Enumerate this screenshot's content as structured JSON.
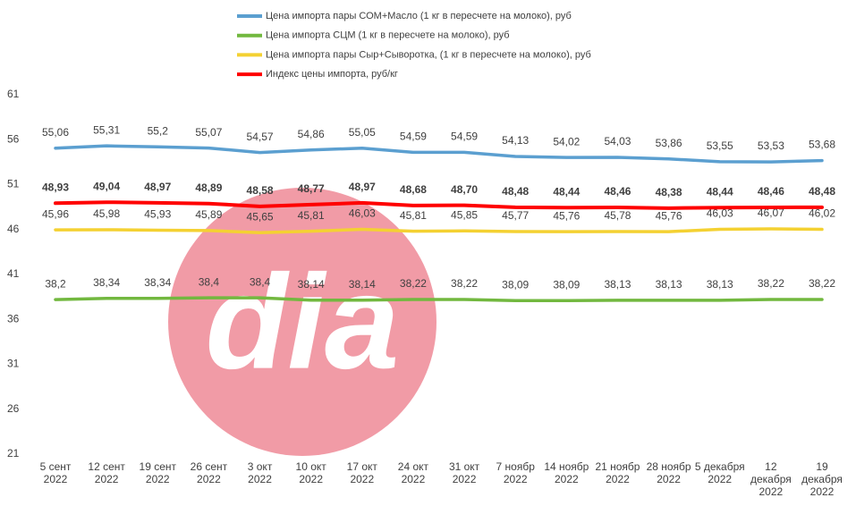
{
  "chart_data": {
    "type": "line",
    "watermark": "dia",
    "categories": [
      [
        "5 сент",
        "2022"
      ],
      [
        "12 сент",
        "2022"
      ],
      [
        "19 сент",
        "2022"
      ],
      [
        "26 сент",
        "2022"
      ],
      [
        "3 окт",
        "2022"
      ],
      [
        "10 окт",
        "2022"
      ],
      [
        "17 окт",
        "2022"
      ],
      [
        "24 окт",
        "2022"
      ],
      [
        "31 окт",
        "2022"
      ],
      [
        "7 ноябр",
        "2022"
      ],
      [
        "14 ноябр",
        "2022"
      ],
      [
        "21 ноябр",
        "2022"
      ],
      [
        "28 ноябр",
        "2022"
      ],
      [
        "5 декабря",
        "2022"
      ],
      [
        "12",
        "декабря",
        "2022"
      ],
      [
        "19",
        "декабря",
        "2022"
      ]
    ],
    "ylim": [
      21,
      61
    ],
    "yticks": [
      21,
      26,
      31,
      36,
      41,
      46,
      51,
      56,
      61
    ],
    "series": [
      {
        "name": "Цена импорта пары СОМ+Масло  (1 кг в пересчете на молоко), руб",
        "color": "#5b9fd0",
        "values": [
          55.06,
          55.31,
          55.2,
          55.07,
          54.57,
          54.86,
          55.05,
          54.59,
          54.59,
          54.13,
          54.02,
          54.03,
          53.86,
          53.55,
          53.53,
          53.68
        ],
        "value_labels": [
          "55,06",
          "55,31",
          "55,2",
          "55,07",
          "54,57",
          "54,86",
          "55,05",
          "54,59",
          "54,59",
          "54,13",
          "54,02",
          "54,03",
          "53,86",
          "53,55",
          "53,53",
          "53,68"
        ]
      },
      {
        "name": "Цена импорта СЦМ (1 кг в пересчете на молоко), руб",
        "color": "#72b83f",
        "values": [
          38.2,
          38.34,
          38.34,
          38.4,
          38.4,
          38.14,
          38.14,
          38.22,
          38.22,
          38.09,
          38.09,
          38.13,
          38.13,
          38.13,
          38.22,
          38.22
        ],
        "value_labels": [
          "38,2",
          "38,34",
          "38,34",
          "38,4",
          "38,4",
          "38,14",
          "38,14",
          "38,22",
          "38,22",
          "38,09",
          "38,09",
          "38,13",
          "38,13",
          "38,13",
          "38,22",
          "38,22"
        ]
      },
      {
        "name": "Цена импорта пары Сыр+Сыворотка, (1 кг в пересчете на молоко), руб",
        "color": "#f4d132",
        "values": [
          45.96,
          45.98,
          45.93,
          45.89,
          45.65,
          45.81,
          46.03,
          45.81,
          45.85,
          45.77,
          45.76,
          45.78,
          45.76,
          46.03,
          46.07,
          46.02
        ],
        "value_labels": [
          "45,96",
          "45,98",
          "45,93",
          "45,89",
          "45,65",
          "45,81",
          "46,03",
          "45,81",
          "45,85",
          "45,77",
          "45,76",
          "45,78",
          "45,76",
          "46,03",
          "46,07",
          "46,02"
        ]
      },
      {
        "name": "Индекс цены импорта, руб/кг",
        "color": "#ff0000",
        "values": [
          48.93,
          49.04,
          48.97,
          48.89,
          48.58,
          48.77,
          48.97,
          48.68,
          48.7,
          48.48,
          48.44,
          48.46,
          48.38,
          48.44,
          48.46,
          48.48
        ],
        "value_labels": [
          "48,93",
          "49,04",
          "48,97",
          "48,89",
          "48,58",
          "48,77",
          "48,97",
          "48,68",
          "48,70",
          "48,48",
          "48,44",
          "48,46",
          "48,38",
          "48,44",
          "48,46",
          "48,48"
        ]
      }
    ]
  }
}
